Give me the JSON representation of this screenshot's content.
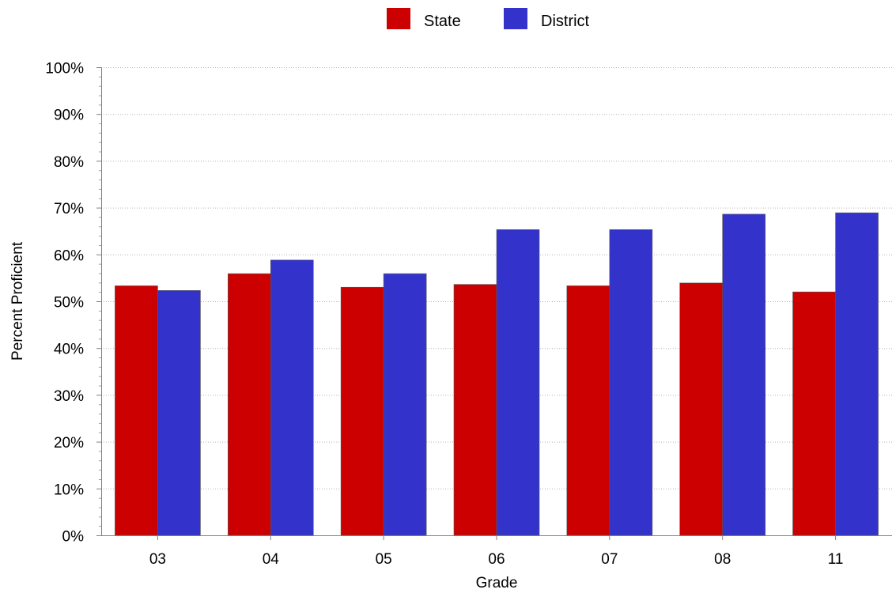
{
  "chart_data": {
    "type": "bar",
    "xlabel": "Grade",
    "ylabel": "Percent Proficient",
    "categories": [
      "03",
      "04",
      "05",
      "06",
      "07",
      "08",
      "11"
    ],
    "series": [
      {
        "name": "State",
        "color": "#cc0000",
        "values": [
          53.3,
          55.9,
          53.0,
          53.6,
          53.3,
          53.9,
          52.0
        ]
      },
      {
        "name": "District",
        "color": "#3333cc",
        "values": [
          52.3,
          58.8,
          55.9,
          65.3,
          65.3,
          68.6,
          68.9
        ]
      }
    ],
    "ylim": [
      0,
      100
    ],
    "y_ticks": [
      "0%",
      "10%",
      "20%",
      "30%",
      "40%",
      "50%",
      "60%",
      "70%",
      "80%",
      "90%",
      "100%"
    ],
    "grid": true,
    "legend_position": "top-center"
  }
}
